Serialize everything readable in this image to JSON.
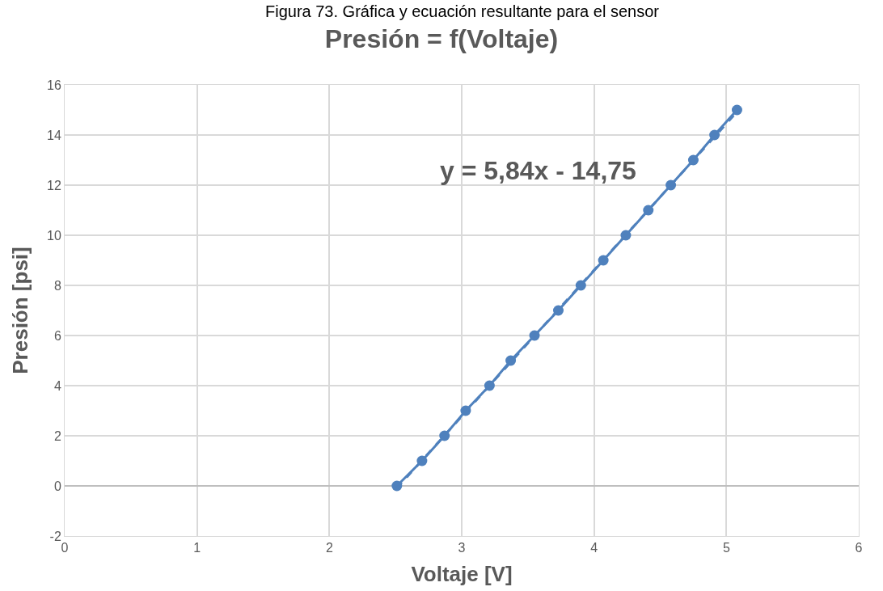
{
  "chart_data": {
    "type": "line",
    "title": "Presión = f(Voltaje)",
    "xlabel": "Voltaje [V]",
    "ylabel": "Presión [psi]",
    "annotations": [
      "Figura 73. Gráfica y ecuación resultante para el sensor",
      "y = 5,84x - 14,75"
    ],
    "series": [
      {
        "color": "#4f81bd",
        "marker": "circle",
        "line_style": "solid",
        "x": [
          2.51,
          2.7,
          2.87,
          3.03,
          3.21,
          3.37,
          3.55,
          3.73,
          3.9,
          4.07,
          4.24,
          4.41,
          4.58,
          4.75,
          4.91,
          5.08
        ],
        "values": [
          0,
          1,
          2,
          3,
          4,
          5,
          6,
          7,
          8,
          9,
          10,
          11,
          12,
          13,
          14,
          15
        ]
      },
      {
        "type": "line",
        "color": "#4f81bd",
        "marker": "none",
        "line_style": "dashed",
        "x": [
          2.51,
          5.08
        ],
        "values": [
          -0.09,
          14.92
        ]
      }
    ],
    "xlim": [
      0,
      6
    ],
    "xticks": [
      0,
      1,
      2,
      3,
      4,
      5,
      6
    ],
    "ylim": [
      -2,
      16
    ],
    "yticks": [
      -2,
      0,
      2,
      4,
      6,
      8,
      10,
      12,
      14,
      16
    ],
    "grid": true
  }
}
